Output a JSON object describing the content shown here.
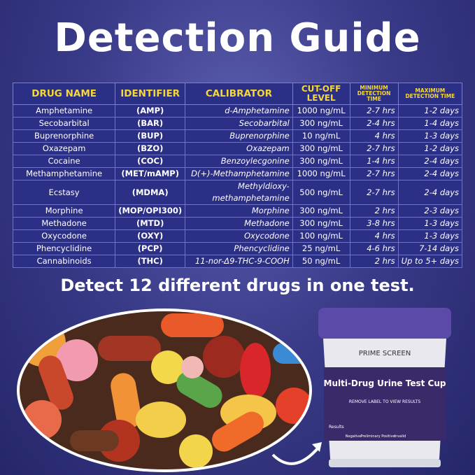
{
  "header": {
    "title": "Detection Guide",
    "subtitle": "Detect 12 different drugs in one test."
  },
  "table": {
    "columns": [
      "DRUG NAME",
      "IDENTIFIER",
      "CALIBRATOR",
      "CUT-OFF LEVEL",
      "MINIMUM DETECTION TIME",
      "MAXIMUM DETECTION TIME"
    ],
    "rows": [
      [
        "Amphetamine",
        "(AMP)",
        "d-Amphetamine",
        "1000 ng/mL",
        "2-7 hrs",
        "1-2 days"
      ],
      [
        "Secobarbital",
        "(BAR)",
        "Secobarbital",
        "300 ng/mL",
        "2-4 hrs",
        "1-4 days"
      ],
      [
        "Buprenorphine",
        "(BUP)",
        "Buprenorphine",
        "10 ng/mL",
        "4 hrs",
        "1-3 days"
      ],
      [
        "Oxazepam",
        "(BZO)",
        "Oxazepam",
        "300 ng/mL",
        "2-7 hrs",
        "1-2 days"
      ],
      [
        "Cocaine",
        "(COC)",
        "Benzoylecgonine",
        "300 ng/mL",
        "1-4 hrs",
        "2-4 days"
      ],
      [
        "Methamphetamine",
        "(MET/mAMP)",
        "D(+)-Methamphetamine",
        "1000 ng/mL",
        "2-7 hrs",
        "2-4 days"
      ],
      [
        "Ecstasy",
        "(MDMA)",
        "Methyldioxy-methamphetamine",
        "500 ng/mL",
        "2-7 hrs",
        "2-4 days"
      ],
      [
        "Morphine",
        "(MOP/OPI300)",
        "Morphine",
        "300 ng/mL",
        "2 hrs",
        "2-3 days"
      ],
      [
        "Methadone",
        "(MTD)",
        "Methadone",
        "300 ng/mL",
        "3-8 hrs",
        "1-3 days"
      ],
      [
        "Oxycodone",
        "(OXY)",
        "Oxycodone",
        "100 ng/mL",
        "4 hrs",
        "1-3 days"
      ],
      [
        "Phencyclidine",
        "(PCP)",
        "Phencyclidine",
        "25 ng/mL",
        "4-6 hrs",
        "7-14 days"
      ],
      [
        "Cannabinoids",
        "(THC)",
        "11-nor-Δ9-THC-9-COOH",
        "50 ng/mL",
        "2 hrs",
        "Up to 5+ days"
      ]
    ]
  },
  "product": {
    "brand": "PRIME SCREEN",
    "name": "Multi-Drug Urine Test Cup",
    "instruction": "REMOVE LABEL TO VIEW RESULTS",
    "results_label": "Results",
    "result_types": [
      "Negative",
      "Preliminary Positive",
      "Invalid"
    ]
  }
}
